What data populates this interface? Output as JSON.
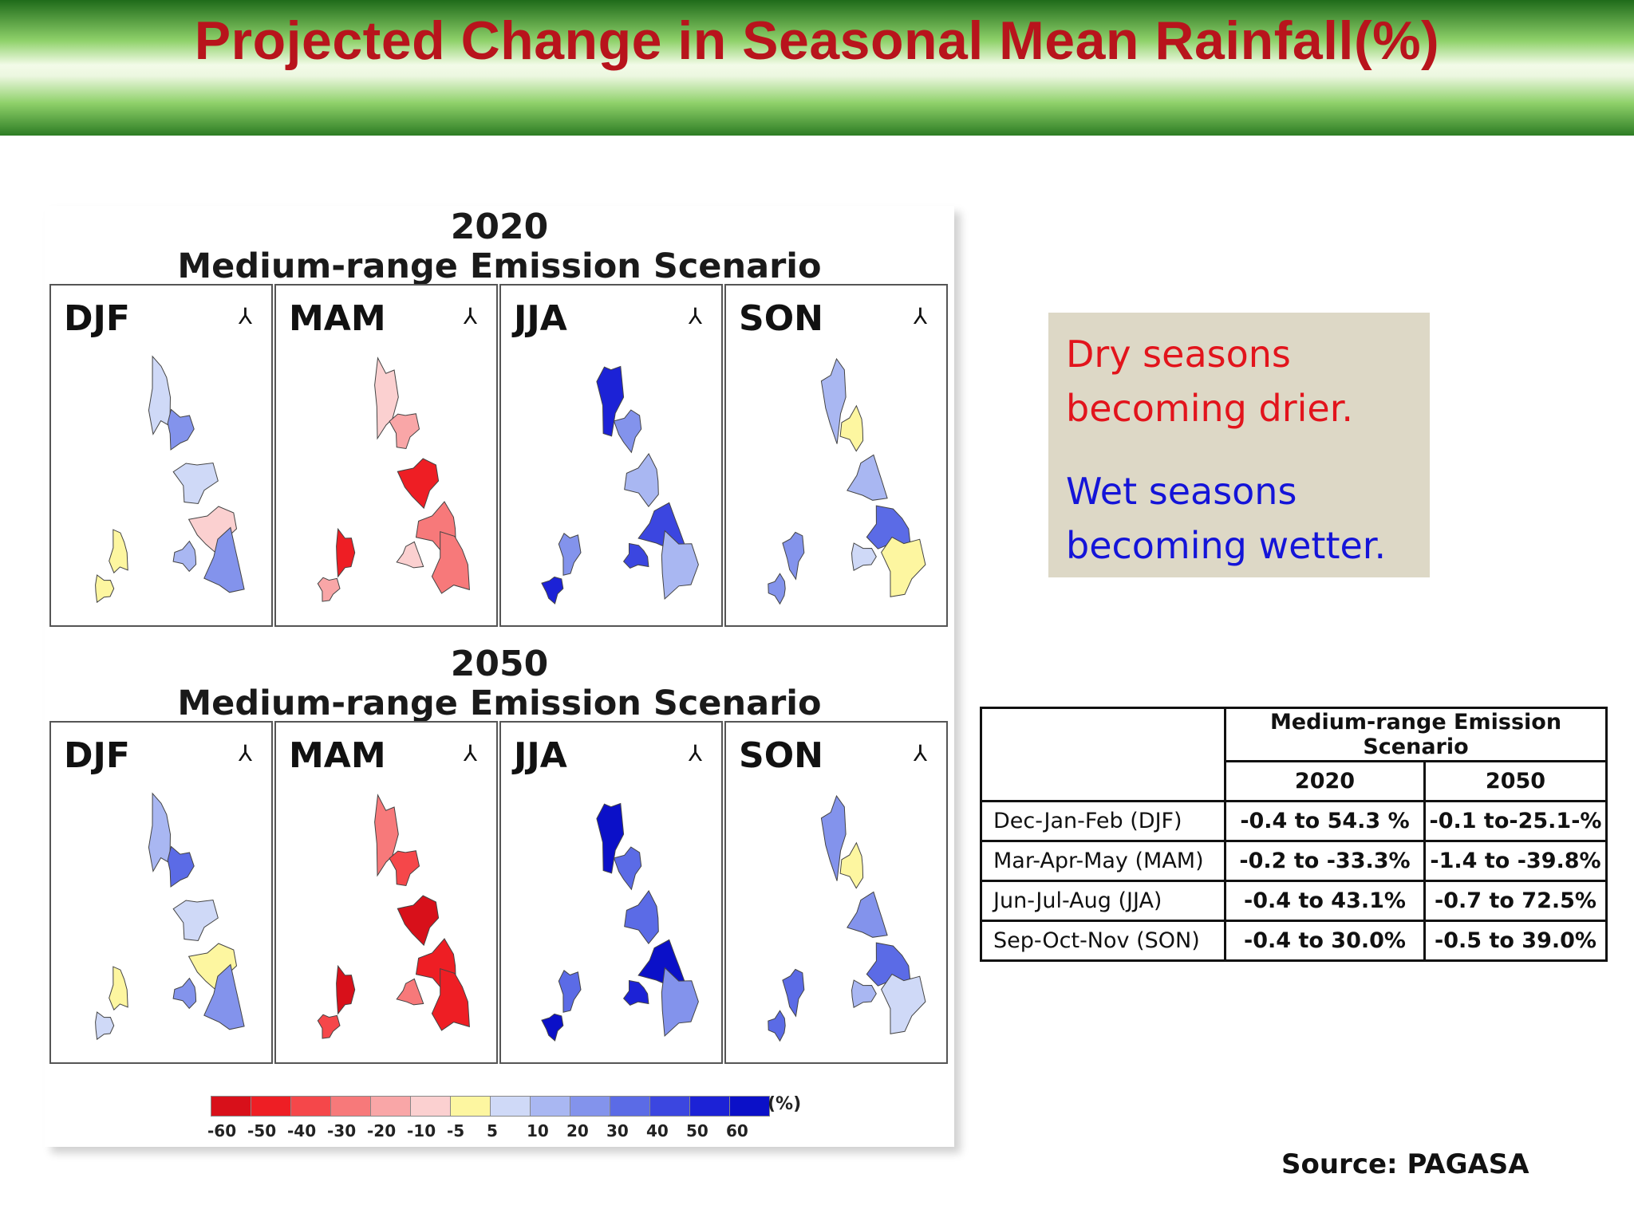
{
  "header": {
    "title": "Projected Change in Seasonal Mean Rainfall(%)"
  },
  "figure": {
    "scenarios": [
      {
        "year": "2020",
        "label": "Medium-range Emission Scenario"
      },
      {
        "year": "2050",
        "label": "Medium-range Emission Scenario"
      }
    ],
    "seasons": [
      "DJF",
      "MAM",
      "JJA",
      "SON"
    ],
    "north_symbol": "⅄",
    "colorbar": {
      "unit": "(%)",
      "ticks": [
        "-60",
        "-50",
        "-40",
        "-30",
        "-20",
        "-10",
        "-5",
        "5",
        "10",
        "20",
        "30",
        "40",
        "50",
        "60"
      ],
      "colors": [
        "#d8101a",
        "#ee1e24",
        "#f5474a",
        "#f7797a",
        "#f9a6a7",
        "#fbd0d0",
        "#fdf6a0",
        "#cfd9f7",
        "#a9b7f2",
        "#8393ec",
        "#5b6be6",
        "#3b46e0",
        "#1c22d6",
        "#0b10c8"
      ]
    }
  },
  "callout": {
    "dry_line1": "Dry seasons",
    "dry_line2": "becoming drier.",
    "wet_line1": "Wet seasons",
    "wet_line2": "becoming wetter."
  },
  "table": {
    "group_header": "Medium-range Emission Scenario",
    "year_headers": [
      "2020",
      "2050"
    ],
    "rows": [
      {
        "season": "Dec-Jan-Feb (DJF)",
        "v2020": "-0.4 to 54.3 %",
        "v2050": "-0.1 to-25.1-%"
      },
      {
        "season": "Mar-Apr-May (MAM)",
        "v2020": "-0.2 to -33.3%",
        "v2050": "-1.4 to -39.8%"
      },
      {
        "season": "Jun-Jul-Aug (JJA)",
        "v2020": "-0.4 to 43.1%",
        "v2050": "-0.7 to 72.5%"
      },
      {
        "season": "Sep-Oct-Nov (SON)",
        "v2020": "-0.4 to 30.0%",
        "v2050": "-0.5 to 39.0%"
      }
    ]
  },
  "source": "Source: PAGASA",
  "colors": {
    "title": "#b8141c",
    "dry": "#e2141c",
    "wet": "#1414d8",
    "callout_bg": "#ddd8c6"
  }
}
